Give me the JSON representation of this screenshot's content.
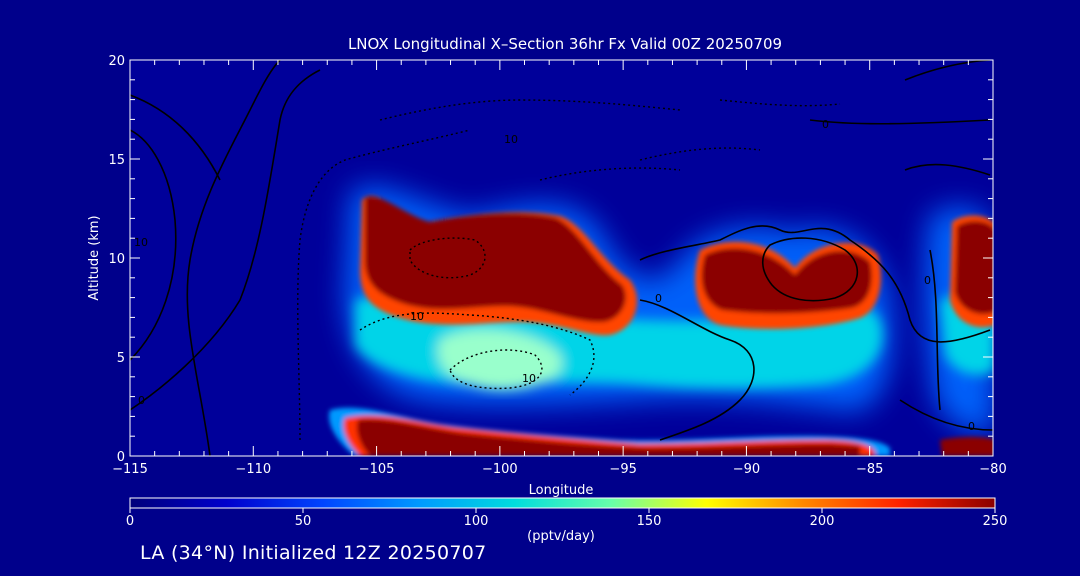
{
  "chart_data": {
    "type": "heatmap",
    "title": "LNOX Longitudinal X–Section 36hr  Fx Valid 00Z 20250709",
    "xlabel": "Longitude",
    "ylabel": "Altitude (km)",
    "xlim": [
      -115,
      -80
    ],
    "ylim": [
      0,
      20
    ],
    "x_ticks": [
      -115,
      -110,
      -105,
      -100,
      -95,
      -90,
      -85,
      -80
    ],
    "x_tick_labels": [
      "−115",
      "−110",
      "−105",
      "−100",
      "−95",
      "−90",
      "−85",
      "−80"
    ],
    "y_ticks": [
      0,
      5,
      10,
      15,
      20
    ],
    "y_tick_labels": [
      "0",
      "5",
      "10",
      "15",
      "20"
    ],
    "colorbar": {
      "min": 0,
      "max": 250,
      "ticks": [
        0,
        50,
        100,
        150,
        200,
        250
      ],
      "tick_labels": [
        "0",
        "50",
        "100",
        "150",
        "200",
        "250"
      ],
      "units": "(pptv/day)",
      "colors": [
        "#00007a",
        "#0000cc",
        "#0044ff",
        "#0099ff",
        "#00dddd",
        "#66ffaa",
        "#ffff00",
        "#ff8800",
        "#ff2200",
        "#8b0000"
      ]
    },
    "units": "pptv/day",
    "grid": false,
    "fields": [
      {
        "name": "upper-band-west",
        "lon": [
          -105.5,
          -96.5
        ],
        "alt": [
          7.5,
          12.5
        ],
        "value": 250
      },
      {
        "name": "upper-band-middle",
        "lon": [
          -92.5,
          -86.0
        ],
        "alt": [
          7.0,
          10.5
        ],
        "value": 250
      },
      {
        "name": "upper-band-east",
        "lon": [
          -81.5,
          -80.0
        ],
        "alt": [
          6.5,
          11.5
        ],
        "value": 250
      },
      {
        "name": "mid-level-halo",
        "lon": [
          -105.0,
          -81.0
        ],
        "alt": [
          3.0,
          7.5
        ],
        "value": 90
      },
      {
        "name": "boundary-layer-band",
        "lon": [
          -106.5,
          -81.5
        ],
        "alt": [
          0.0,
          2.0
        ],
        "value": 250
      }
    ],
    "contour_labels": [
      "10",
      "10",
      "10",
      "0",
      "0",
      "0",
      "0",
      "0",
      "10"
    ],
    "annotation": "LA (34°N) Initialized 12Z 20250707"
  }
}
